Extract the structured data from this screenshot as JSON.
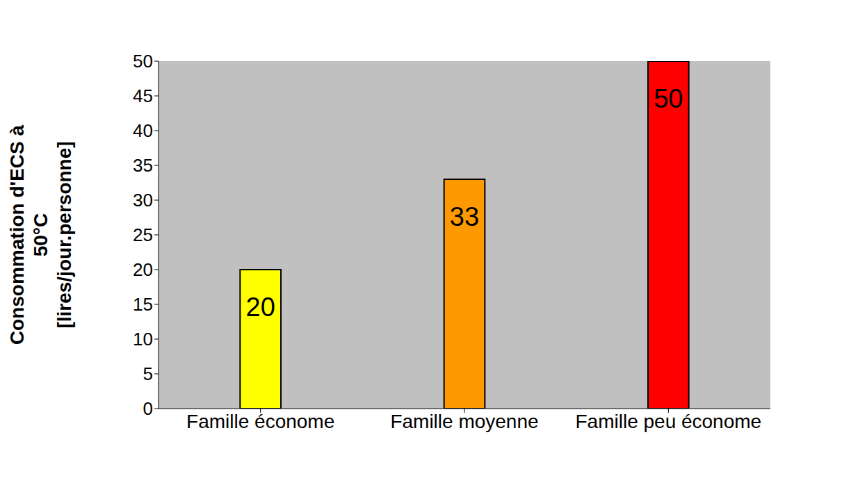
{
  "chart_data": {
    "type": "bar",
    "ylabel": "Consommation d'ECS à 50°C [lires/jour.personne]",
    "categories": [
      "Famille économe",
      "Famille moyenne",
      "Famille peu économe"
    ],
    "values": [
      20,
      33,
      50
    ],
    "colors": [
      "#ffff00",
      "#ff9900",
      "#ff0000"
    ],
    "ylim": [
      0,
      50
    ],
    "yticks": [
      0,
      5,
      10,
      15,
      20,
      25,
      30,
      35,
      40,
      45,
      50
    ],
    "grid": false,
    "data_labels": true
  }
}
